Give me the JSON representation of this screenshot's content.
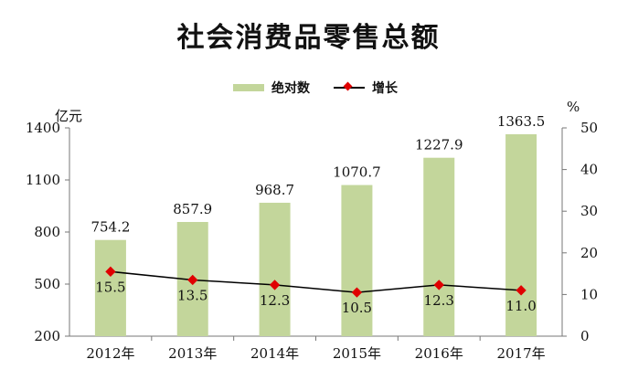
{
  "title": "社会消费品零售总额",
  "legend": {
    "bar_label": "绝对数",
    "line_label": "增长"
  },
  "axes": {
    "left_unit": "亿元",
    "right_unit": "%"
  },
  "colors": {
    "bar": "#c3d69b",
    "line": "#000000",
    "marker": "#e00000"
  },
  "chart_data": {
    "type": "bar",
    "title": "社会消费品零售总额",
    "categories": [
      "2012年",
      "2013年",
      "2014年",
      "2015年",
      "2016年",
      "2017年"
    ],
    "series": [
      {
        "name": "绝对数",
        "type": "bar",
        "axis": "left",
        "values": [
          754.2,
          857.9,
          968.7,
          1070.7,
          1227.9,
          1363.5
        ]
      },
      {
        "name": "增长",
        "type": "line",
        "axis": "right",
        "values": [
          15.5,
          13.5,
          12.3,
          10.5,
          12.3,
          11.0
        ]
      }
    ],
    "ylabel": "亿元",
    "ylim": [
      200,
      1400
    ],
    "yticks": [
      200,
      500,
      800,
      1100,
      1400
    ],
    "y2label": "%",
    "y2lim": [
      0,
      50
    ],
    "y2ticks": [
      0,
      10,
      20,
      30,
      40,
      50
    ],
    "grid": false,
    "legend_position": "top"
  }
}
